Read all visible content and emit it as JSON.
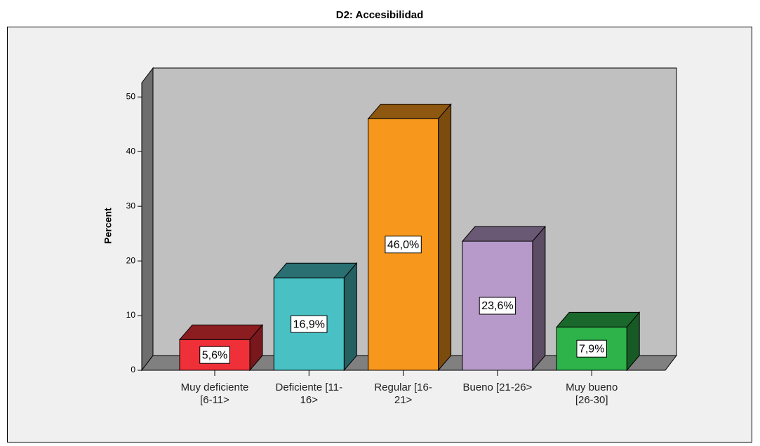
{
  "chart_data": {
    "type": "bar3d",
    "title": "D2: Accesibilidad",
    "y_label": "Percent",
    "categories": [
      "Muy deficiente\n[6-11>",
      "Deficiente [11-\n16>",
      "Regular [16-\n21>",
      "Bueno [21-26>",
      "Muy bueno\n[26-30]"
    ],
    "values": [
      5.6,
      16.9,
      46.0,
      23.6,
      7.9
    ],
    "value_labels": [
      "5,6%",
      "16,9%",
      "46,0%",
      "23,6%",
      "7,9%"
    ],
    "colors": [
      "#ef3038",
      "#48c0c4",
      "#f7981d",
      "#b79ac9",
      "#2db34a"
    ],
    "ylim": [
      0,
      52.6
    ],
    "yticks": [
      0,
      10,
      20,
      30,
      40,
      50
    ]
  }
}
